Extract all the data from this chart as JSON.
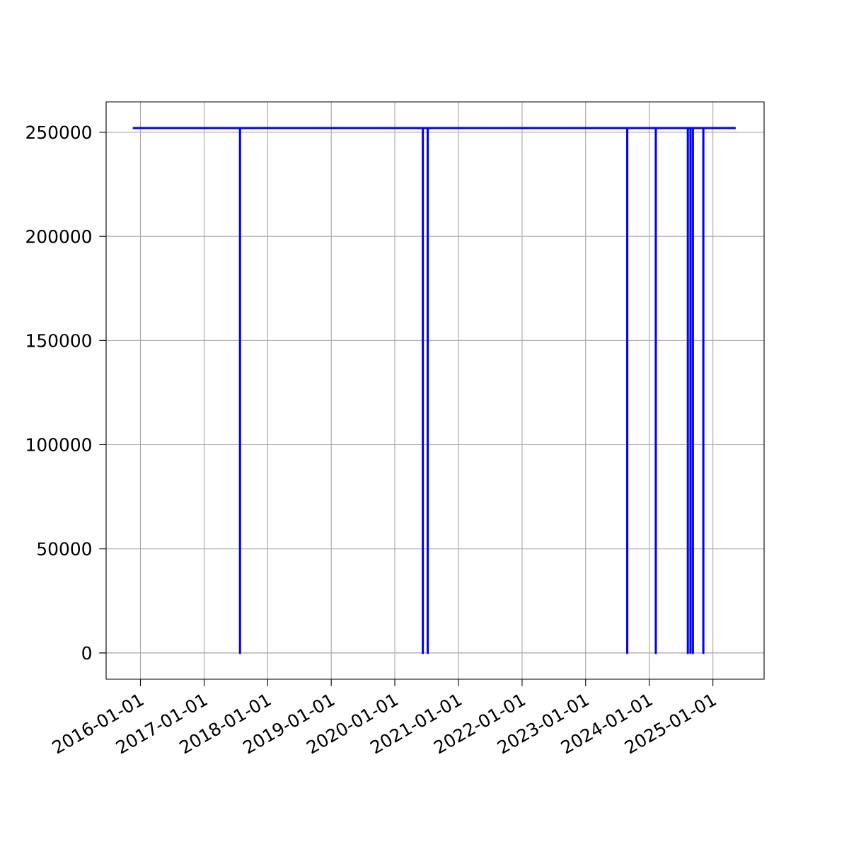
{
  "chart_data": {
    "type": "line",
    "x": [
      "2015-11-18",
      "2017-07-26",
      "2017-07-26",
      "2017-07-26",
      "2020-06-10",
      "2020-06-10",
      "2020-06-10",
      "2020-07-08",
      "2020-07-08",
      "2020-07-08",
      "2023-08-28",
      "2023-08-28",
      "2023-08-28",
      "2024-02-08",
      "2024-02-08",
      "2024-02-08",
      "2024-08-10",
      "2024-08-10",
      "2024-08-10",
      "2024-08-25",
      "2024-08-25",
      "2024-08-25",
      "2024-09-08",
      "2024-09-08",
      "2024-09-08",
      "2024-11-07",
      "2024-11-07",
      "2024-11-07",
      "2025-05-12"
    ],
    "series": [
      {
        "color": "#0000ff",
        "values": [
          252000,
          252000,
          0,
          252000,
          252000,
          0,
          252000,
          252000,
          0,
          252000,
          252000,
          0,
          252000,
          252000,
          0,
          252000,
          252000,
          0,
          252000,
          252000,
          0,
          252000,
          252000,
          0,
          252000,
          252000,
          0,
          252000,
          252000
        ]
      }
    ],
    "xlim": [
      "2015-06-18",
      "2025-10-22"
    ],
    "ylim": [
      -12600,
      264600
    ],
    "xticks": [
      "2016-01-01",
      "2017-01-01",
      "2018-01-01",
      "2019-01-01",
      "2020-01-01",
      "2021-01-01",
      "2022-01-01",
      "2023-01-01",
      "2024-01-01",
      "2025-01-01"
    ],
    "yticks": [
      0,
      50000,
      100000,
      150000,
      200000,
      250000
    ],
    "grid": true,
    "marker": "none",
    "line_style": "solid"
  }
}
